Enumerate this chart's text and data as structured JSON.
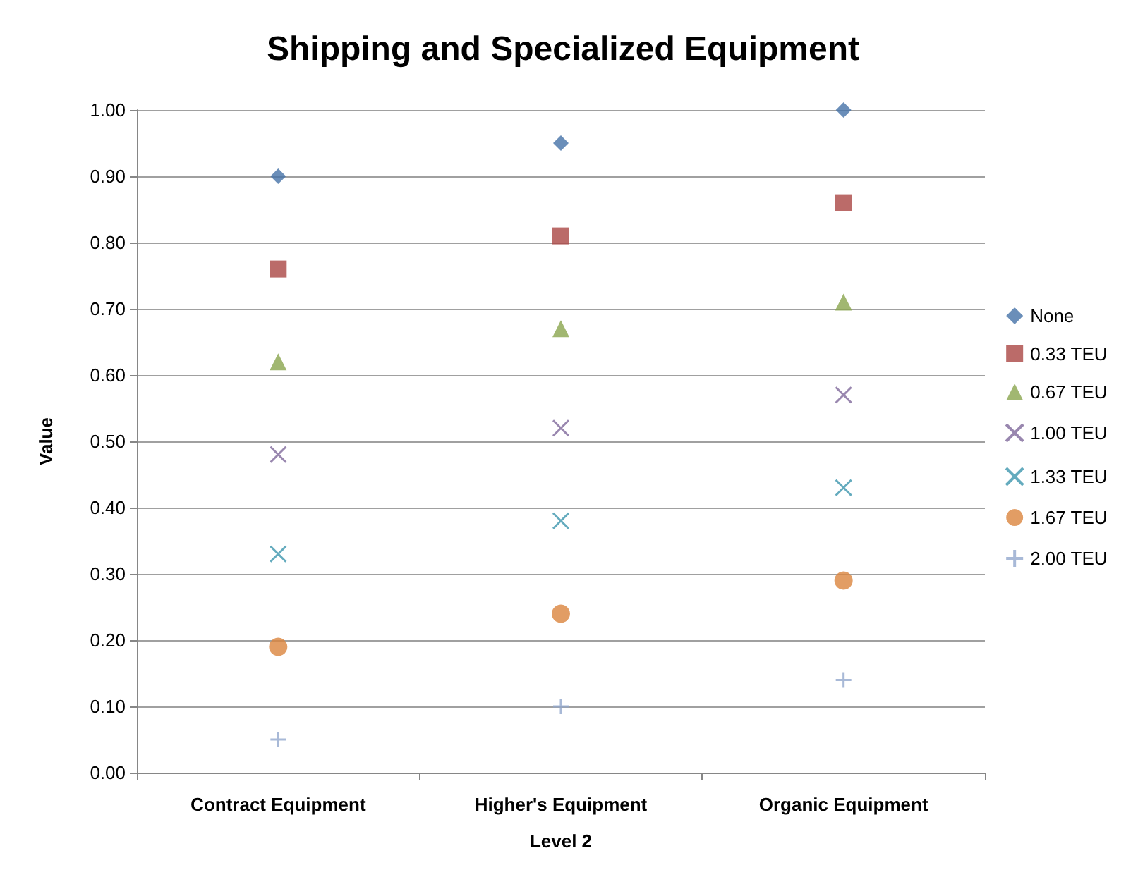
{
  "chart_data": {
    "type": "scatter",
    "title": "Shipping and Specialized Equipment",
    "xlabel": "Level 2",
    "ylabel": "Value",
    "categories": [
      "Contract Equipment",
      "Higher's Equipment",
      "Organic Equipment"
    ],
    "series": [
      {
        "name": "None",
        "color": "#4572a7",
        "marker": "diamond",
        "values": [
          0.9,
          0.95,
          1.0
        ]
      },
      {
        "name": "0.33 TEU",
        "color": "#aa4643",
        "marker": "square",
        "values": [
          0.76,
          0.81,
          0.86
        ]
      },
      {
        "name": "0.67 TEU",
        "color": "#89a54e",
        "marker": "triangle",
        "values": [
          0.62,
          0.67,
          0.71
        ]
      },
      {
        "name": "1.00 TEU",
        "color": "#80699b",
        "marker": "cross",
        "values": [
          0.48,
          0.52,
          0.57
        ]
      },
      {
        "name": "1.33 TEU",
        "color": "#3d96ae",
        "marker": "cross",
        "values": [
          0.33,
          0.38,
          0.43
        ]
      },
      {
        "name": "1.67 TEU",
        "color": "#db843d",
        "marker": "circle",
        "values": [
          0.19,
          0.24,
          0.29
        ]
      },
      {
        "name": "2.00 TEU",
        "color": "#92a8cd",
        "marker": "plus",
        "values": [
          0.05,
          0.1,
          0.14
        ]
      }
    ],
    "ylim": [
      0,
      1
    ],
    "yticks": [
      {
        "value": 0,
        "label": "0.00"
      },
      {
        "value": 0.1,
        "label": "0.10"
      },
      {
        "value": 0.2,
        "label": "0.20"
      },
      {
        "value": 0.3,
        "label": "0.30"
      },
      {
        "value": 0.4,
        "label": "0.40"
      },
      {
        "value": 0.5,
        "label": "0.50"
      },
      {
        "value": 0.6,
        "label": "0.60"
      },
      {
        "value": 0.7,
        "label": "0.70"
      },
      {
        "value": 0.8,
        "label": "0.80"
      },
      {
        "value": 0.9,
        "label": "0.90"
      },
      {
        "value": 1,
        "label": "1.00"
      }
    ],
    "grid": "y",
    "legend": "right"
  }
}
